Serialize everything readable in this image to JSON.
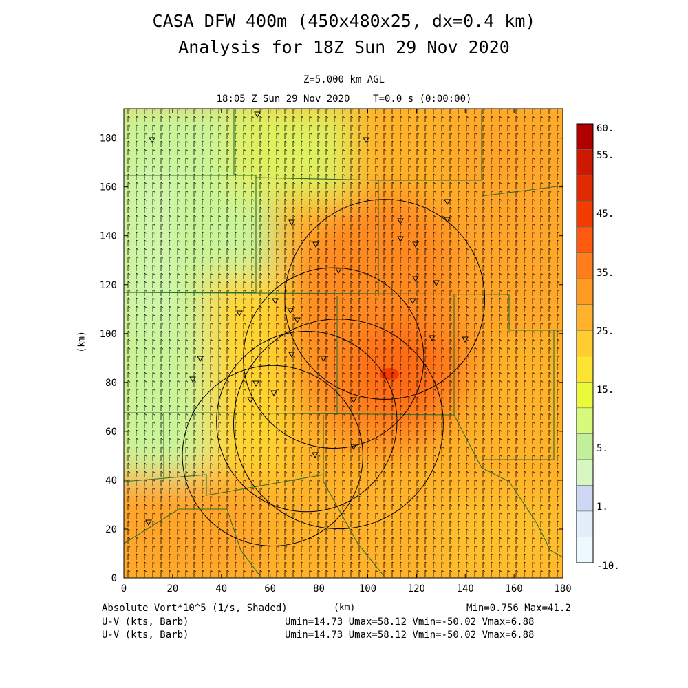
{
  "header": {
    "title_line1": "CASA DFW 400m (450x480x25, dx=0.4 km)",
    "title_line2": "Analysis for 18Z Sun 29 Nov 2020",
    "level": "Z=5.000 km AGL",
    "valid_time": "18:05 Z Sun 29 Nov 2020    T=0.0 s (0:00:00)"
  },
  "axes": {
    "x_label": "(km)",
    "y_label": "(km)",
    "x_ticks": [
      "0",
      "20",
      "40",
      "60",
      "80",
      "100",
      "120",
      "140",
      "160",
      "180"
    ],
    "y_ticks": [
      "0",
      "20",
      "40",
      "60",
      "80",
      "100",
      "120",
      "140",
      "160",
      "180"
    ],
    "x_range": [
      0,
      180
    ],
    "y_range": [
      0,
      192
    ]
  },
  "colorbar": {
    "labels": [
      "60.",
      "55.",
      "45.",
      "35.",
      "25.",
      "15.",
      "5.",
      "1.",
      "-10."
    ],
    "colors": [
      "#b00000",
      "#cc1a00",
      "#e02a00",
      "#f23c00",
      "#ff5a10",
      "#ff7d1a",
      "#ff9a22",
      "#ffb22a",
      "#ffcd30",
      "#fde332",
      "#eafa3a",
      "#d6fb7a",
      "#c2f09a",
      "#d8f6c2",
      "#cdd8f5",
      "#e2eef9",
      "#eef9fd"
    ]
  },
  "footer": {
    "field": "Absolute Vort*10^5 (1/s, Shaded)",
    "units": "(km)",
    "minmax": "Min=0.756 Max=41.2",
    "vector1_label": "U-V (kts, Barb)",
    "vector1_stats": "Umin=14.73 Umax=58.12 Vmin=-50.02 Vmax=6.88",
    "vector2_label": "U-V (kts, Barb)",
    "vector2_stats": "Umin=14.73 Umax=58.12 Vmin=-50.02 Vmax=6.88"
  },
  "map_data": {
    "field_max_value": 41.2,
    "field_min_value": 0.756,
    "radar_range_rings": [
      {
        "center_km": [
          61,
          50
        ],
        "radius_km": 37
      },
      {
        "center_km": [
          75,
          64
        ],
        "radius_km": 37
      },
      {
        "center_km": [
          88,
          63
        ],
        "radius_km": 43
      },
      {
        "center_km": [
          86,
          90
        ],
        "radius_km": 37
      },
      {
        "center_km": [
          107,
          114
        ],
        "radius_km": 41
      }
    ]
  }
}
